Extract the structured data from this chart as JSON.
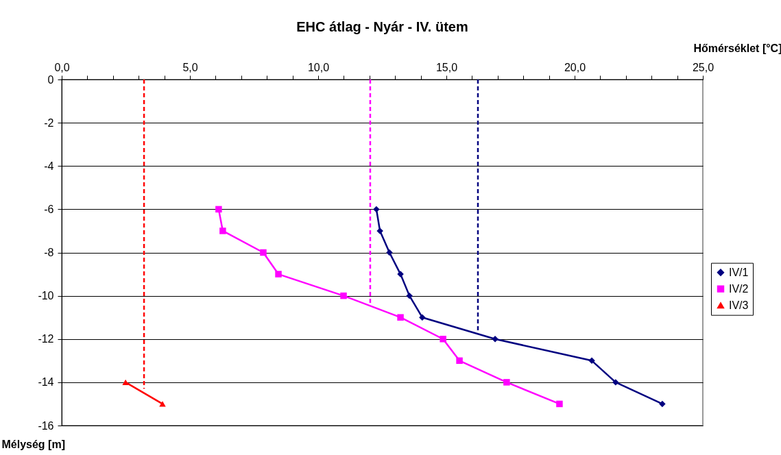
{
  "chart_data": {
    "type": "line",
    "title": "EHC átlag - Nyár - IV. ütem",
    "xlabel": "Hőmérséklet [°C]",
    "ylabel": "Mélység [m]",
    "xlim": [
      0,
      25
    ],
    "ylim": [
      -16,
      0
    ],
    "xticks": [
      {
        "value": 0,
        "label": "0,0"
      },
      {
        "value": 1,
        "label": null
      },
      {
        "value": 2,
        "label": null
      },
      {
        "value": 3,
        "label": null
      },
      {
        "value": 4,
        "label": null
      },
      {
        "value": 5,
        "label": "5,0"
      },
      {
        "value": 6,
        "label": null
      },
      {
        "value": 7,
        "label": null
      },
      {
        "value": 8,
        "label": null
      },
      {
        "value": 9,
        "label": null
      },
      {
        "value": 10,
        "label": "10,0"
      },
      {
        "value": 11,
        "label": null
      },
      {
        "value": 12,
        "label": null
      },
      {
        "value": 13,
        "label": null
      },
      {
        "value": 14,
        "label": null
      },
      {
        "value": 15,
        "label": "15,0"
      },
      {
        "value": 16,
        "label": null
      },
      {
        "value": 17,
        "label": null
      },
      {
        "value": 18,
        "label": null
      },
      {
        "value": 19,
        "label": null
      },
      {
        "value": 20,
        "label": "20,0"
      },
      {
        "value": 21,
        "label": null
      },
      {
        "value": 22,
        "label": null
      },
      {
        "value": 23,
        "label": null
      },
      {
        "value": 24,
        "label": null
      },
      {
        "value": 25,
        "label": "25,0"
      }
    ],
    "yticks": [
      0,
      -2,
      -4,
      -6,
      -8,
      -10,
      -12,
      -14,
      -16
    ],
    "grid": "y",
    "legend": "right",
    "series": [
      {
        "name": "IV/1",
        "color": "#000080",
        "marker": "diamond",
        "line_style": "solid",
        "x": [
          12.27,
          12.41,
          12.78,
          13.21,
          13.56,
          14.06,
          16.9,
          20.67,
          21.6,
          23.42
        ],
        "values": [
          -6,
          -7,
          -8,
          -9,
          -10,
          -11,
          -12,
          -13,
          -14,
          -15
        ]
      },
      {
        "name": "IV/2",
        "color": "#ff00ff",
        "marker": "square",
        "line_style": "solid",
        "x": [
          6.12,
          6.28,
          7.86,
          8.45,
          10.99,
          13.21,
          14.87,
          15.51,
          17.35,
          19.41
        ],
        "values": [
          -6,
          -7,
          -8,
          -9,
          -10,
          -11,
          -12,
          -13,
          -14,
          -15
        ]
      },
      {
        "name": "IV/3",
        "color": "#ff0000",
        "marker": "triangle",
        "line_style": "solid",
        "x": [
          2.49,
          3.93
        ],
        "values": [
          -14,
          -15
        ]
      },
      {
        "color": "#ff0000",
        "marker": "none",
        "line_style": "dashed",
        "x": [
          3.21,
          3.21
        ],
        "values": [
          0,
          -14.3
        ]
      },
      {
        "color": "#ff00ff",
        "marker": "none",
        "line_style": "dashed",
        "x": [
          12.03,
          12.03
        ],
        "values": [
          0,
          -10.4
        ]
      },
      {
        "color": "#000080",
        "marker": "none",
        "line_style": "dashed",
        "x": [
          16.23,
          16.23
        ],
        "values": [
          0,
          -11.7
        ]
      }
    ]
  }
}
